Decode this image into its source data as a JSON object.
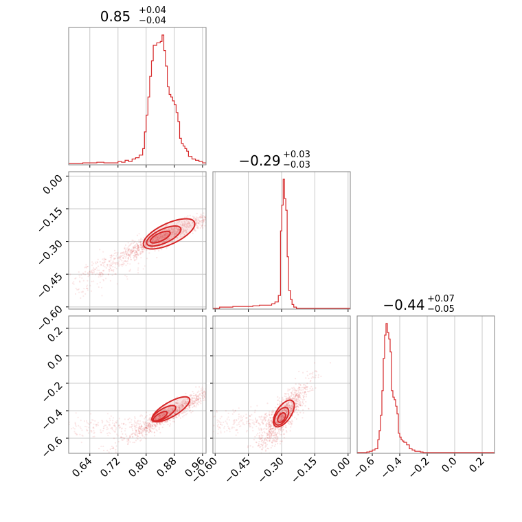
{
  "chart_data": {
    "type": "corner",
    "color": "#d62728",
    "panels": [
      {
        "kind": "hist",
        "param": 0,
        "title": {
          "median": "0.85",
          "plus": "+0.04",
          "minus": "−0.04"
        },
        "xlim": [
          0.58,
          0.97
        ],
        "bins": [
          [
            0.58,
            0.5
          ],
          [
            0.6,
            0.5
          ],
          [
            0.62,
            1.0
          ],
          [
            0.64,
            1.0
          ],
          [
            0.66,
            1.5
          ],
          [
            0.68,
            1.0
          ],
          [
            0.7,
            1.0
          ],
          [
            0.72,
            2.0
          ],
          [
            0.73,
            1.5
          ],
          [
            0.74,
            3.0
          ],
          [
            0.75,
            2.0
          ],
          [
            0.76,
            4.0
          ],
          [
            0.77,
            5.0
          ],
          [
            0.78,
            7.0
          ],
          [
            0.79,
            12.0
          ],
          [
            0.795,
            25.0
          ],
          [
            0.8,
            38.0
          ],
          [
            0.805,
            52.0
          ],
          [
            0.81,
            68.0
          ],
          [
            0.815,
            80.0
          ],
          [
            0.82,
            92.0
          ],
          [
            0.825,
            92.0
          ],
          [
            0.83,
            94.0
          ],
          [
            0.835,
            94.0
          ],
          [
            0.84,
            95.0
          ],
          [
            0.845,
            100.0
          ],
          [
            0.85,
            88.0
          ],
          [
            0.855,
            76.0
          ],
          [
            0.86,
            60.0
          ],
          [
            0.865,
            54.0
          ],
          [
            0.87,
            52.0
          ],
          [
            0.875,
            49.0
          ],
          [
            0.88,
            46.0
          ],
          [
            0.885,
            40.0
          ],
          [
            0.89,
            33.0
          ],
          [
            0.895,
            20.0
          ],
          [
            0.9,
            16.0
          ],
          [
            0.905,
            14.0
          ],
          [
            0.91,
            12.0
          ],
          [
            0.915,
            10.0
          ],
          [
            0.92,
            6.0
          ],
          [
            0.93,
            4.0
          ],
          [
            0.94,
            3.0
          ],
          [
            0.95,
            2.0
          ],
          [
            0.96,
            1.0
          ]
        ],
        "bin_width": 0.005
      },
      {
        "kind": "hist",
        "param": 1,
        "title": {
          "median": "−0.29",
          "plus": "+0.03",
          "minus": "−0.03"
        },
        "xlim": [
          -0.61,
          0.01
        ],
        "bins": [
          [
            -0.58,
            1.0
          ],
          [
            -0.55,
            1.0
          ],
          [
            -0.52,
            1.5
          ],
          [
            -0.49,
            1.5
          ],
          [
            -0.46,
            1.5
          ],
          [
            -0.43,
            2.0
          ],
          [
            -0.4,
            2.5
          ],
          [
            -0.37,
            2.5
          ],
          [
            -0.345,
            3.5
          ],
          [
            -0.33,
            5.0
          ],
          [
            -0.315,
            10.0
          ],
          [
            -0.305,
            60.0
          ],
          [
            -0.299,
            80.0
          ],
          [
            -0.293,
            100.0
          ],
          [
            -0.287,
            85.0
          ],
          [
            -0.281,
            76.0
          ],
          [
            -0.275,
            40.0
          ],
          [
            -0.269,
            14.0
          ],
          [
            -0.261,
            7.0
          ],
          [
            -0.253,
            3.0
          ],
          [
            -0.245,
            1.0
          ]
        ],
        "bin_width": 0.006
      },
      {
        "kind": "hist",
        "param": 2,
        "title": {
          "median": "−0.44",
          "plus": "+0.07",
          "minus": "−0.05"
        },
        "xlim": [
          -0.71,
          0.29
        ],
        "bins": [
          [
            -0.64,
            0.5
          ],
          [
            -0.62,
            1.0
          ],
          [
            -0.6,
            2.0
          ],
          [
            -0.58,
            3.0
          ],
          [
            -0.56,
            10.0
          ],
          [
            -0.55,
            17.0
          ],
          [
            -0.54,
            29.0
          ],
          [
            -0.53,
            48.0
          ],
          [
            -0.52,
            73.0
          ],
          [
            -0.51,
            91.0
          ],
          [
            -0.5,
            100.0
          ],
          [
            -0.49,
            93.0
          ],
          [
            -0.48,
            88.0
          ],
          [
            -0.47,
            78.0
          ],
          [
            -0.46,
            48.0
          ],
          [
            -0.45,
            43.0
          ],
          [
            -0.44,
            41.0
          ],
          [
            -0.43,
            36.0
          ],
          [
            -0.42,
            30.0
          ],
          [
            -0.41,
            15.0
          ],
          [
            -0.4,
            12.0
          ],
          [
            -0.39,
            10.0
          ],
          [
            -0.38,
            9.0
          ],
          [
            -0.37,
            8.0
          ],
          [
            -0.35,
            6.0
          ],
          [
            -0.33,
            3.0
          ],
          [
            -0.31,
            2.0
          ],
          [
            -0.29,
            1.0
          ],
          [
            -0.25,
            0.5
          ]
        ],
        "bin_width": 0.01
      },
      {
        "kind": "scatter2d",
        "x_param": 0,
        "y_param": 1,
        "xlim": [
          0.58,
          0.97
        ],
        "ylim": [
          -0.61,
          0.02
        ],
        "core": {
          "cx": 0.85,
          "cy": -0.28,
          "ax_dx": 0.1,
          "ax_dy": 0.075,
          "w1": 0.28,
          "w2": 0.045
        },
        "contours": [
          {
            "cx": 0.865,
            "cy": -0.265,
            "r1": 0.09,
            "r2": 0.021,
            "fill": 0.18
          },
          {
            "cx": 0.85,
            "cy": -0.275,
            "r1": 0.06,
            "r2": 0.014,
            "fill": 0.3
          },
          {
            "cx": 0.84,
            "cy": -0.28,
            "r1": 0.035,
            "r2": 0.008,
            "fill": 0.45
          }
        ],
        "tail": {
          "x0": 0.6,
          "y0": -0.52,
          "x1": 0.8,
          "y1": -0.32
        }
      },
      {
        "kind": "scatter2d",
        "x_param": 0,
        "y_param": 2,
        "xlim": [
          0.58,
          0.97
        ],
        "ylim": [
          -0.71,
          0.29
        ],
        "core": {
          "cx": 0.87,
          "cy": -0.42,
          "ax_dx": 0.1,
          "ax_dy": 0.15,
          "w1": 0.28,
          "w2": 0.05
        },
        "contours": [
          {
            "cx": 0.87,
            "cy": -0.39,
            "r1": 0.095,
            "r2": 0.02,
            "fill": 0.18
          },
          {
            "cx": 0.85,
            "cy": -0.42,
            "r1": 0.06,
            "r2": 0.013,
            "fill": 0.3
          },
          {
            "cx": 0.84,
            "cy": -0.44,
            "r1": 0.035,
            "r2": 0.008,
            "fill": 0.45
          }
        ],
        "tail": {
          "x0": 0.6,
          "y0": -0.53,
          "x1": 0.8,
          "y1": -0.49
        }
      },
      {
        "kind": "scatter2d",
        "x_param": 1,
        "y_param": 2,
        "xlim": [
          -0.61,
          0.01
        ],
        "ylim": [
          -0.71,
          0.29
        ],
        "core": {
          "cx": -0.29,
          "cy": -0.43,
          "ax_dx": 0.05,
          "ax_dy": 0.12,
          "w1": 0.3,
          "w2": 0.08
        },
        "contours": [
          {
            "cx": -0.29,
            "cy": -0.42,
            "r1": 0.1,
            "r2": 0.03,
            "fill": 0.15
          },
          {
            "cx": -0.3,
            "cy": -0.44,
            "r1": 0.065,
            "r2": 0.022,
            "fill": 0.25
          },
          {
            "cx": -0.3,
            "cy": -0.45,
            "r1": 0.035,
            "r2": 0.013,
            "fill": 0.4
          }
        ],
        "tail": {
          "x0": -0.6,
          "y0": -0.5,
          "x1": -0.35,
          "y1": -0.47
        }
      }
    ],
    "axes": {
      "p0_ticks": [
        "0.64",
        "0.72",
        "0.80",
        "0.88",
        "0.96"
      ],
      "p0_tick_values": [
        0.64,
        0.72,
        0.8,
        0.88,
        0.96
      ],
      "p1_ticks": [
        "−0.60",
        "−0.45",
        "−0.30",
        "−0.15",
        "0.00"
      ],
      "p1_tick_values": [
        -0.6,
        -0.45,
        -0.3,
        -0.15,
        0.0
      ],
      "p2_ticks": [
        "−0.6",
        "−0.4",
        "−0.2",
        "0.0",
        "0.2"
      ],
      "p2_tick_values": [
        -0.6,
        -0.4,
        -0.2,
        0.0,
        0.2
      ]
    }
  }
}
